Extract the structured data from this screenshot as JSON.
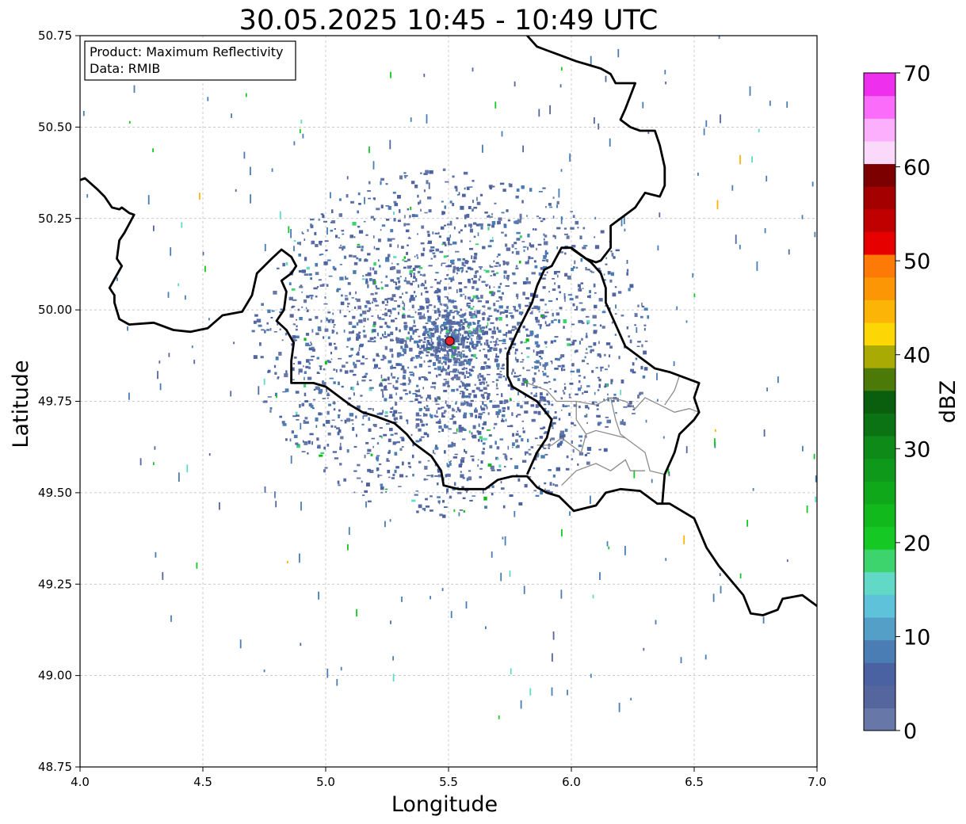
{
  "title": "30.05.2025 10:45 - 10:49 UTC",
  "info_box": {
    "product": "Product: Maximum Reflectivity",
    "data": "Data: RMIB"
  },
  "axes": {
    "xlabel": "Longitude",
    "ylabel": "Latitude",
    "xlim": [
      4.0,
      7.0
    ],
    "ylim": [
      48.75,
      50.75
    ],
    "x_ticks": [
      "4.0",
      "4.5",
      "5.0",
      "5.5",
      "6.0",
      "6.5",
      "7.0"
    ],
    "y_ticks": [
      "48.75",
      "49.00",
      "49.25",
      "49.50",
      "49.75",
      "50.00",
      "50.25",
      "50.50",
      "50.75"
    ],
    "grid": true
  },
  "colorbar": {
    "label": "dBZ",
    "tick_labels": [
      "0",
      "10",
      "20",
      "30",
      "40",
      "50",
      "60",
      "70"
    ],
    "range": [
      0,
      70
    ],
    "step": 2.5,
    "colors": [
      "#6677a8",
      "#55669f",
      "#4b62a2",
      "#4a7db4",
      "#539fc7",
      "#5fc2db",
      "#61d9c6",
      "#3dd46e",
      "#16c823",
      "#12b91c",
      "#0fa81a",
      "#0f991a",
      "#0d8a17",
      "#0b7314",
      "#0a5f0e",
      "#4b7a08",
      "#aaaa05",
      "#fcd705",
      "#fcb507",
      "#fc9605",
      "#fc7a05",
      "#e60000",
      "#c00000",
      "#a50000",
      "#7d0000",
      "#fbd9fb",
      "#fcaffc",
      "#fb6cfb",
      "#ee30ee"
    ]
  },
  "radar": {
    "site_lon": 5.505,
    "site_lat": 49.915,
    "marker_color": "#e8212a"
  },
  "borders": {
    "national": [
      [
        [
          4.0,
          50.355
        ],
        [
          4.02,
          50.36
        ],
        [
          4.07,
          50.33
        ],
        [
          4.1,
          50.31
        ],
        [
          4.13,
          50.28
        ],
        [
          4.16,
          50.275
        ],
        [
          4.17,
          50.28
        ],
        [
          4.2,
          50.265
        ],
        [
          4.22,
          50.26
        ],
        [
          4.18,
          50.21
        ],
        [
          4.16,
          50.19
        ],
        [
          4.15,
          50.14
        ],
        [
          4.17,
          50.12
        ],
        [
          4.12,
          50.06
        ],
        [
          4.14,
          50.04
        ],
        [
          4.14,
          50.02
        ],
        [
          4.16,
          49.975
        ],
        [
          4.2,
          49.96
        ],
        [
          4.3,
          49.965
        ],
        [
          4.38,
          49.945
        ],
        [
          4.45,
          49.94
        ],
        [
          4.52,
          49.95
        ],
        [
          4.58,
          49.985
        ],
        [
          4.66,
          49.995
        ],
        [
          4.7,
          50.04
        ],
        [
          4.72,
          50.1
        ],
        [
          4.78,
          50.14
        ],
        [
          4.82,
          50.165
        ],
        [
          4.86,
          50.145
        ],
        [
          4.88,
          50.12
        ],
        [
          4.86,
          50.1
        ],
        [
          4.82,
          50.08
        ],
        [
          4.84,
          50.05
        ],
        [
          4.83,
          50.0
        ],
        [
          4.8,
          49.97
        ],
        [
          4.84,
          49.945
        ],
        [
          4.87,
          49.91
        ],
        [
          4.86,
          49.86
        ],
        [
          4.86,
          49.8
        ],
        [
          4.95,
          49.8
        ],
        [
          5.0,
          49.79
        ],
        [
          5.06,
          49.76
        ],
        [
          5.1,
          49.74
        ],
        [
          5.15,
          49.72
        ],
        [
          5.2,
          49.71
        ],
        [
          5.28,
          49.69
        ],
        [
          5.33,
          49.66
        ],
        [
          5.36,
          49.635
        ],
        [
          5.43,
          49.6
        ],
        [
          5.47,
          49.56
        ],
        [
          5.48,
          49.52
        ],
        [
          5.54,
          49.51
        ],
        [
          5.6,
          49.51
        ],
        [
          5.65,
          49.51
        ],
        [
          5.7,
          49.535
        ],
        [
          5.76,
          49.545
        ],
        [
          5.82,
          49.545
        ],
        [
          5.86,
          49.515
        ],
        [
          5.9,
          49.5
        ],
        [
          5.95,
          49.49
        ],
        [
          6.01,
          49.45
        ],
        [
          6.1,
          49.465
        ],
        [
          6.14,
          49.5
        ],
        [
          6.2,
          49.51
        ],
        [
          6.28,
          49.505
        ],
        [
          6.35,
          49.47
        ],
        [
          6.4,
          49.47
        ],
        [
          6.5,
          49.43
        ],
        [
          6.55,
          49.35
        ],
        [
          6.6,
          49.3
        ],
        [
          6.7,
          49.22
        ],
        [
          6.73,
          49.17
        ],
        [
          6.78,
          49.165
        ],
        [
          6.84,
          49.18
        ],
        [
          6.86,
          49.21
        ],
        [
          6.94,
          49.22
        ],
        [
          7.0,
          49.19
        ]
      ],
      [
        [
          5.82,
          50.765
        ],
        [
          5.82,
          50.75
        ],
        [
          5.86,
          50.72
        ],
        [
          5.9,
          50.71
        ],
        [
          5.94,
          50.7
        ],
        [
          5.98,
          50.69
        ],
        [
          6.02,
          50.68
        ],
        [
          6.07,
          50.67
        ],
        [
          6.12,
          50.66
        ],
        [
          6.16,
          50.645
        ],
        [
          6.18,
          50.62
        ],
        [
          6.26,
          50.62
        ],
        [
          6.22,
          50.55
        ],
        [
          6.2,
          50.52
        ],
        [
          6.24,
          50.5
        ],
        [
          6.28,
          50.49
        ],
        [
          6.34,
          50.49
        ],
        [
          6.36,
          50.45
        ],
        [
          6.38,
          50.39
        ],
        [
          6.38,
          50.34
        ],
        [
          6.36,
          50.31
        ],
        [
          6.3,
          50.32
        ],
        [
          6.26,
          50.28
        ],
        [
          6.2,
          50.25
        ],
        [
          6.16,
          50.23
        ],
        [
          6.16,
          50.17
        ],
        [
          6.12,
          50.135
        ],
        [
          6.1,
          50.13
        ],
        [
          6.06,
          50.14
        ],
        [
          6.0,
          50.17
        ],
        [
          5.96,
          50.17
        ],
        [
          5.92,
          50.12
        ],
        [
          5.89,
          50.11
        ],
        [
          5.86,
          50.065
        ],
        [
          5.84,
          50.02
        ],
        [
          5.81,
          49.98
        ],
        [
          5.78,
          49.94
        ],
        [
          5.74,
          49.88
        ],
        [
          5.74,
          49.82
        ],
        [
          5.76,
          49.79
        ],
        [
          5.86,
          49.75
        ],
        [
          5.92,
          49.7
        ],
        [
          5.9,
          49.65
        ],
        [
          5.86,
          49.61
        ],
        [
          5.82,
          49.55
        ]
      ],
      [
        [
          6.0,
          50.168
        ],
        [
          6.08,
          50.13
        ],
        [
          6.12,
          50.1
        ],
        [
          6.14,
          50.06
        ],
        [
          6.14,
          50.02
        ],
        [
          6.18,
          49.96
        ],
        [
          6.22,
          49.9
        ],
        [
          6.3,
          49.86
        ],
        [
          6.34,
          49.84
        ],
        [
          6.4,
          49.83
        ],
        [
          6.48,
          49.81
        ],
        [
          6.52,
          49.8
        ],
        [
          6.5,
          49.76
        ],
        [
          6.52,
          49.72
        ],
        [
          6.5,
          49.7
        ],
        [
          6.44,
          49.66
        ],
        [
          6.42,
          49.61
        ],
        [
          6.38,
          49.55
        ],
        [
          6.37,
          49.47
        ]
      ]
    ],
    "regional": [
      [
        [
          5.82,
          49.8
        ],
        [
          5.9,
          49.78
        ],
        [
          5.94,
          49.75
        ],
        [
          6.02,
          49.75
        ],
        [
          6.1,
          49.74
        ],
        [
          6.16,
          49.76
        ],
        [
          6.22,
          49.75
        ],
        [
          6.26,
          49.73
        ],
        [
          6.3,
          49.76
        ],
        [
          6.36,
          49.74
        ],
        [
          6.42,
          49.72
        ],
        [
          6.48,
          49.73
        ],
        [
          6.52,
          49.72
        ]
      ],
      [
        [
          5.86,
          49.63
        ],
        [
          5.92,
          49.63
        ],
        [
          5.96,
          49.65
        ],
        [
          6.0,
          49.63
        ],
        [
          6.04,
          49.61
        ],
        [
          6.06,
          49.66
        ],
        [
          6.1,
          49.67
        ],
        [
          6.16,
          49.66
        ],
        [
          6.22,
          49.65
        ],
        [
          6.26,
          49.63
        ],
        [
          6.3,
          49.61
        ],
        [
          6.32,
          49.56
        ],
        [
          6.38,
          49.55
        ]
      ],
      [
        [
          6.16,
          49.76
        ],
        [
          6.18,
          49.7
        ],
        [
          6.2,
          49.66
        ],
        [
          6.22,
          49.65
        ]
      ],
      [
        [
          6.06,
          49.66
        ],
        [
          6.02,
          49.7
        ],
        [
          6.02,
          49.75
        ]
      ],
      [
        [
          5.96,
          49.52
        ],
        [
          6.02,
          49.56
        ],
        [
          6.1,
          49.58
        ],
        [
          6.16,
          49.56
        ],
        [
          6.22,
          49.59
        ],
        [
          6.24,
          49.56
        ],
        [
          6.3,
          49.56
        ]
      ],
      [
        [
          6.38,
          49.74
        ],
        [
          6.42,
          49.78
        ],
        [
          6.44,
          49.82
        ]
      ]
    ]
  }
}
